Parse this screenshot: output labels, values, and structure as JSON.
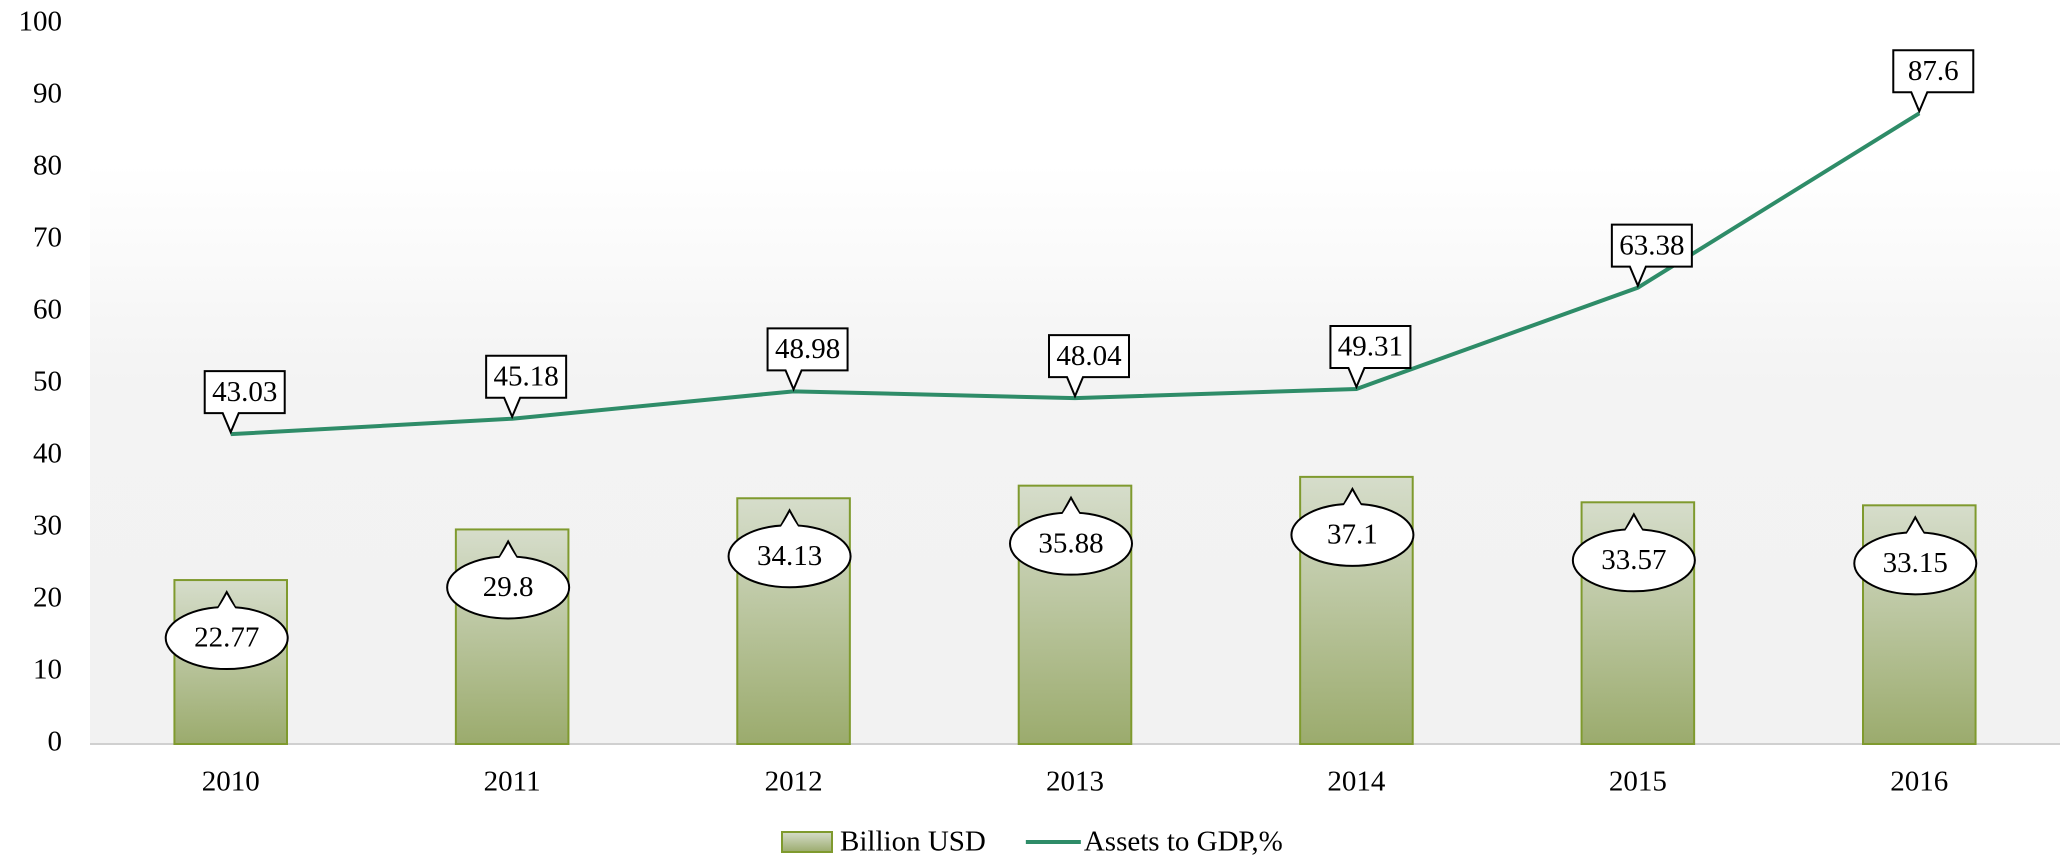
{
  "chart_data": {
    "type": "combo",
    "categories": [
      "2010",
      "2011",
      "2012",
      "2013",
      "2014",
      "2015",
      "2016"
    ],
    "series": [
      {
        "name": "Billion USD",
        "type": "bar",
        "color": "#7f9a2e",
        "values": [
          22.77,
          29.8,
          34.13,
          35.88,
          37.1,
          33.57,
          33.15
        ]
      },
      {
        "name": "Assets to GDP,%",
        "type": "line",
        "color": "#2e8c68",
        "values": [
          43.03,
          45.18,
          48.98,
          48.04,
          49.31,
          63.38,
          87.6
        ]
      }
    ],
    "ylim": [
      0,
      100
    ],
    "yticks": [
      0,
      10,
      20,
      30,
      40,
      50,
      60,
      70,
      80,
      90,
      100
    ],
    "grid": false,
    "legend": "bottom"
  }
}
